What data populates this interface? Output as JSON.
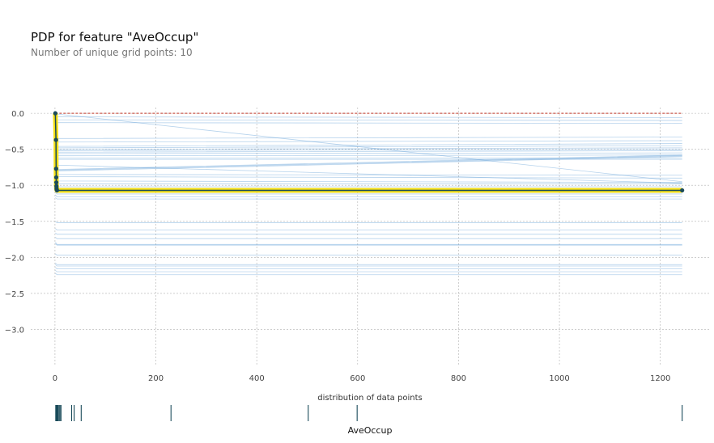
{
  "chart_data": {
    "type": "line",
    "title": "PDP for feature \"AveOccup\"",
    "subtitle": "Number of unique grid points: 10",
    "xlabel": "AveOccup",
    "dist_label": "distribution of data points",
    "xlim": [
      -48,
      1300
    ],
    "ylim": [
      -3.5,
      0.08
    ],
    "x_ticks": [
      0,
      200,
      400,
      600,
      800,
      1000,
      1200
    ],
    "x_tick_labels": [
      "0",
      "200",
      "400",
      "600",
      "800",
      "1000",
      "1200"
    ],
    "y_ticks": [
      0.0,
      -0.5,
      -1.0,
      -1.5,
      -2.0,
      -2.5,
      -3.0
    ],
    "y_tick_labels": [
      "0.0",
      "−0.5",
      "−1.0",
      "−1.5",
      "−2.0",
      "−2.5",
      "−3.0"
    ],
    "grid": true,
    "pdp": {
      "name": "average",
      "x": [
        0.7,
        2.0,
        2.3,
        2.5,
        2.7,
        2.9,
        3.1,
        3.4,
        4.0,
        1243.3
      ],
      "y": [
        0.0,
        -0.37,
        -0.77,
        -0.89,
        -0.96,
        -1.01,
        -1.04,
        -1.06,
        -1.07,
        -1.07
      ],
      "color": "#1a4b5a",
      "band_color": "#f2dd0c"
    },
    "ice_lines": [
      {
        "x": [
          0.7,
          4.0,
          1243.3
        ],
        "y": [
          -0.05,
          -0.05,
          -0.06
        ]
      },
      {
        "x": [
          0.7,
          4.0,
          1243.3
        ],
        "y": [
          -0.08,
          -0.09,
          -0.1
        ]
      },
      {
        "x": [
          0.7,
          4.0,
          1243.3
        ],
        "y": [
          -0.12,
          -0.13,
          -0.14
        ]
      },
      {
        "x": [
          0.7,
          4.0,
          1243.3
        ],
        "y": [
          -0.33,
          -0.35,
          -0.33
        ]
      },
      {
        "x": [
          0.7,
          4.0,
          1243.3
        ],
        "y": [
          -0.38,
          -0.4,
          -0.38
        ]
      },
      {
        "x": [
          0.7,
          4.0,
          1243.3
        ],
        "y": [
          -0.44,
          -0.46,
          -0.42
        ]
      },
      {
        "x": [
          0.7,
          4.0,
          1243.3
        ],
        "y": [
          -0.46,
          -0.48,
          -0.45
        ]
      },
      {
        "x": [
          0.7,
          4.0,
          1243.3
        ],
        "y": [
          -0.48,
          -0.5,
          -0.48
        ]
      },
      {
        "x": [
          0.7,
          4.0,
          1243.3
        ],
        "y": [
          -0.5,
          -0.52,
          -0.5
        ]
      },
      {
        "x": [
          0.7,
          4.0,
          1243.3
        ],
        "y": [
          -0.52,
          -0.54,
          -0.52
        ]
      },
      {
        "x": [
          0.7,
          4.0,
          1243.3
        ],
        "y": [
          -0.54,
          -0.56,
          -0.55
        ]
      },
      {
        "x": [
          0.7,
          4.0,
          1243.3
        ],
        "y": [
          -0.57,
          -0.59,
          -0.58
        ]
      },
      {
        "x": [
          0.7,
          4.0,
          1243.3
        ],
        "y": [
          -0.6,
          -0.62,
          -0.62
        ]
      },
      {
        "x": [
          0.7,
          4.0,
          1243.3
        ],
        "y": [
          -0.62,
          -0.64,
          -0.64
        ]
      },
      {
        "x": [
          0.7,
          4.0,
          1243.3
        ],
        "y": [
          -0.75,
          -0.78,
          -0.58
        ]
      },
      {
        "x": [
          0.7,
          4.0,
          1243.3
        ],
        "y": [
          -0.76,
          -0.79,
          -0.59
        ]
      },
      {
        "x": [
          0.7,
          4.0,
          1243.3
        ],
        "y": [
          -0.77,
          -0.8,
          -0.6
        ]
      },
      {
        "x": [
          0.7,
          4.0,
          1243.3
        ],
        "y": [
          -0.82,
          -0.85,
          -0.86
        ]
      },
      {
        "x": [
          0.7,
          4.0,
          1243.3
        ],
        "y": [
          -0.85,
          -0.88,
          -0.9
        ]
      },
      {
        "x": [
          0.7,
          4.0,
          1243.3
        ],
        "y": [
          -0.0,
          -0.01,
          -0.95
        ]
      },
      {
        "x": [
          0.7,
          4.0,
          1243.3
        ],
        "y": [
          -0.7,
          -0.72,
          -0.97
        ]
      },
      {
        "x": [
          0.7,
          4.0,
          1243.3
        ],
        "y": [
          -0.92,
          -0.94,
          -0.96
        ]
      },
      {
        "x": [
          0.7,
          4.0,
          1243.3
        ],
        "y": [
          -0.96,
          -0.98,
          -0.98
        ]
      },
      {
        "x": [
          0.7,
          4.0,
          1243.3
        ],
        "y": [
          -1.0,
          -1.02,
          -1.02
        ]
      },
      {
        "x": [
          0.7,
          4.0,
          1243.3
        ],
        "y": [
          -1.05,
          -1.06,
          -1.06
        ]
      },
      {
        "x": [
          0.7,
          4.0,
          1243.3
        ],
        "y": [
          -1.1,
          -1.12,
          -1.12
        ]
      },
      {
        "x": [
          0.7,
          4.0,
          1243.3
        ],
        "y": [
          -1.13,
          -1.16,
          -1.16
        ]
      },
      {
        "x": [
          0.7,
          4.0,
          1243.3
        ],
        "y": [
          -1.17,
          -1.19,
          -1.19
        ]
      },
      {
        "x": [
          0.7,
          4.0,
          1243.3
        ],
        "y": [
          -1.5,
          -1.52,
          -1.52
        ]
      },
      {
        "x": [
          0.7,
          4.0,
          1243.3
        ],
        "y": [
          -1.6,
          -1.62,
          -1.62
        ]
      },
      {
        "x": [
          0.7,
          4.0,
          1243.3
        ],
        "y": [
          -1.66,
          -1.68,
          -1.68
        ]
      },
      {
        "x": [
          0.7,
          4.0,
          1243.3
        ],
        "y": [
          -1.72,
          -1.74,
          -1.74
        ]
      },
      {
        "x": [
          0.7,
          4.0,
          1243.3
        ],
        "y": [
          -1.79,
          -1.82,
          -1.82
        ]
      },
      {
        "x": [
          0.7,
          4.0,
          1243.3
        ],
        "y": [
          -1.81,
          -1.83,
          -1.83
        ]
      },
      {
        "x": [
          0.7,
          4.0,
          1243.3
        ],
        "y": [
          -1.95,
          -1.97,
          -1.97
        ]
      },
      {
        "x": [
          0.7,
          4.0,
          1243.3
        ],
        "y": [
          -2.08,
          -2.1,
          -2.1
        ]
      },
      {
        "x": [
          0.7,
          4.0,
          1243.3
        ],
        "y": [
          -2.1,
          -2.12,
          -2.12
        ]
      },
      {
        "x": [
          0.7,
          4.0,
          1243.3
        ],
        "y": [
          -2.14,
          -2.16,
          -2.16
        ]
      },
      {
        "x": [
          0.7,
          4.0,
          1243.3
        ],
        "y": [
          -2.18,
          -2.2,
          -2.2
        ]
      },
      {
        "x": [
          0.7,
          4.0,
          1243.3
        ],
        "y": [
          -2.22,
          -2.24,
          -2.24
        ]
      }
    ],
    "zero_line": {
      "y": 0,
      "color": "#c0392b"
    },
    "distribution": {
      "x": [
        1.5,
        2.0,
        2.5,
        3.0,
        3.5,
        4.0,
        5.0,
        6.0,
        8.0,
        10.0,
        12.0,
        33.0,
        38.0,
        52.0,
        230.0,
        502.0,
        599.0,
        1243.3
      ],
      "color": "#1a4b5a"
    },
    "colors": {
      "ice": "#5b9bd5",
      "grid": "#b0b0b0",
      "title": "#111111",
      "subtitle": "#777777",
      "tick": "#444444"
    }
  }
}
